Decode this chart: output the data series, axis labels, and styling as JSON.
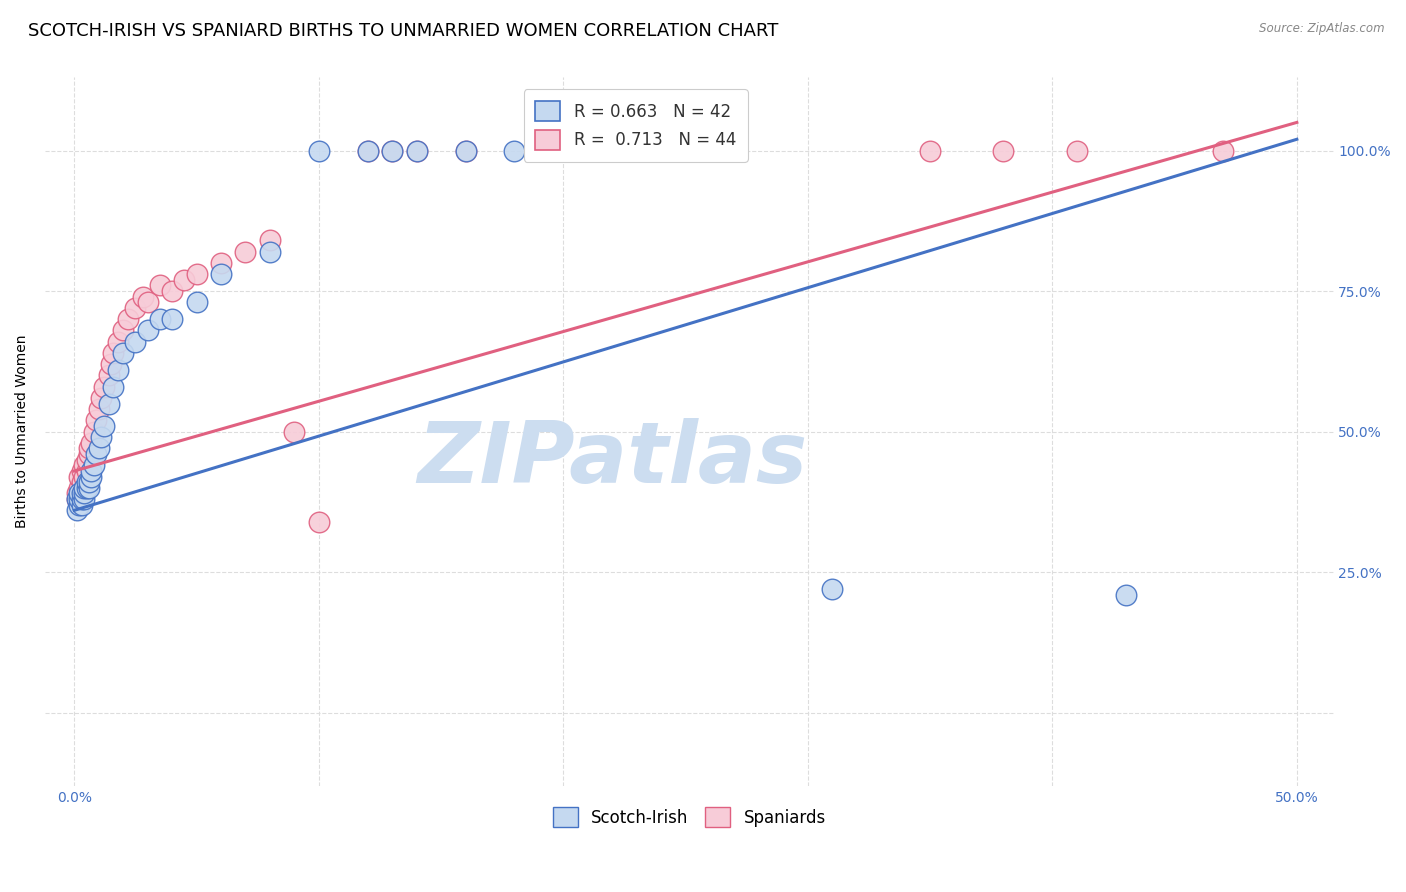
{
  "title": "SCOTCH-IRISH VS SPANIARD BIRTHS TO UNMARRIED WOMEN CORRELATION CHART",
  "source": "Source: ZipAtlas.com",
  "ylabel": "Births to Unmarried Women",
  "x_tick_vals": [
    0.0,
    0.1,
    0.2,
    0.3,
    0.4,
    0.5
  ],
  "x_tick_labels": [
    "0.0%",
    "",
    "",
    "",
    "",
    "50.0%"
  ],
  "y_tick_vals": [
    0.0,
    0.25,
    0.5,
    0.75,
    1.0
  ],
  "y_tick_labels_right": [
    "",
    "25.0%",
    "50.0%",
    "75.0%",
    "100.0%"
  ],
  "xlim": [
    -0.012,
    0.515
  ],
  "ylim": [
    -0.13,
    1.13
  ],
  "scotch_irish_fill": "#c5d9f0",
  "scotch_irish_edge": "#4472c4",
  "spaniard_fill": "#f7ccd8",
  "spaniard_edge": "#e06080",
  "scotch_irish_line_color": "#4472c4",
  "spaniard_line_color": "#e06080",
  "R_scotch": 0.663,
  "N_scotch": 42,
  "R_spaniard": 0.713,
  "N_spaniard": 44,
  "watermark_text": "ZIPatlas",
  "watermark_color": "#ccddf0",
  "background_color": "#ffffff",
  "grid_color": "#dddddd",
  "title_fontsize": 13,
  "axis_label_fontsize": 10,
  "tick_fontsize": 10,
  "legend_fontsize": 12,
  "scotch_irish_x": [
    0.001,
    0.001,
    0.002,
    0.002,
    0.002,
    0.003,
    0.003,
    0.003,
    0.004,
    0.004,
    0.004,
    0.005,
    0.005,
    0.006,
    0.006,
    0.007,
    0.007,
    0.008,
    0.009,
    0.01,
    0.011,
    0.012,
    0.014,
    0.016,
    0.018,
    0.02,
    0.025,
    0.03,
    0.035,
    0.04,
    0.05,
    0.06,
    0.08,
    0.1,
    0.12,
    0.13,
    0.14,
    0.16,
    0.18,
    0.2,
    0.31,
    0.43
  ],
  "scotch_irish_y": [
    0.36,
    0.38,
    0.37,
    0.38,
    0.39,
    0.37,
    0.38,
    0.39,
    0.38,
    0.39,
    0.4,
    0.4,
    0.41,
    0.4,
    0.41,
    0.42,
    0.43,
    0.44,
    0.46,
    0.47,
    0.49,
    0.51,
    0.55,
    0.58,
    0.61,
    0.64,
    0.66,
    0.68,
    0.7,
    0.7,
    0.73,
    0.78,
    0.82,
    1.0,
    1.0,
    1.0,
    1.0,
    1.0,
    1.0,
    1.0,
    0.22,
    0.21
  ],
  "spaniard_x": [
    0.001,
    0.001,
    0.002,
    0.002,
    0.003,
    0.003,
    0.004,
    0.004,
    0.005,
    0.005,
    0.006,
    0.006,
    0.007,
    0.008,
    0.009,
    0.01,
    0.011,
    0.012,
    0.014,
    0.015,
    0.016,
    0.018,
    0.02,
    0.022,
    0.025,
    0.028,
    0.03,
    0.035,
    0.04,
    0.045,
    0.05,
    0.06,
    0.07,
    0.08,
    0.09,
    0.1,
    0.12,
    0.13,
    0.14,
    0.16,
    0.35,
    0.38,
    0.41,
    0.47
  ],
  "spaniard_y": [
    0.38,
    0.39,
    0.4,
    0.42,
    0.41,
    0.43,
    0.42,
    0.44,
    0.43,
    0.45,
    0.46,
    0.47,
    0.48,
    0.5,
    0.52,
    0.54,
    0.56,
    0.58,
    0.6,
    0.62,
    0.64,
    0.66,
    0.68,
    0.7,
    0.72,
    0.74,
    0.73,
    0.76,
    0.75,
    0.77,
    0.78,
    0.8,
    0.82,
    0.84,
    0.5,
    0.34,
    1.0,
    1.0,
    1.0,
    1.0,
    1.0,
    1.0,
    1.0,
    1.0
  ],
  "line_si_x0": 0.0,
  "line_si_y0": 0.36,
  "line_si_x1": 0.5,
  "line_si_y1": 1.02,
  "line_sp_x0": 0.0,
  "line_sp_y0": 0.43,
  "line_sp_x1": 0.5,
  "line_sp_y1": 1.05
}
